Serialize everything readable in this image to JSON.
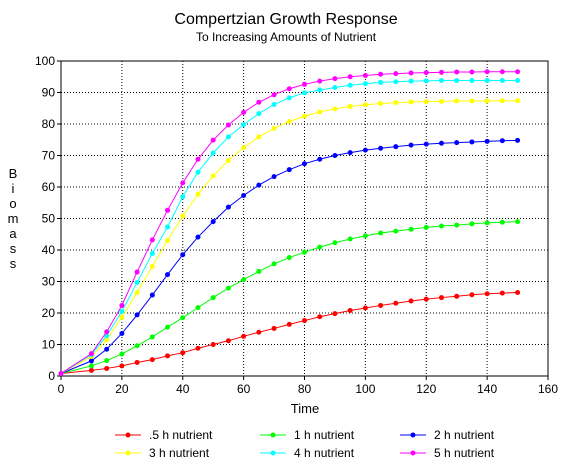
{
  "chart_data": {
    "type": "line",
    "title": "Compertzian Growth Response",
    "subtitle": "To Increasing Amounts of Nutrient",
    "xlabel": "Time",
    "ylabel": "Biomass",
    "xlim": [
      0,
      160
    ],
    "ylim": [
      0,
      100
    ],
    "xticks": [
      "0",
      "20",
      "40",
      "60",
      "80",
      "100",
      "120",
      "140",
      "160"
    ],
    "yticks": [
      "0",
      "10",
      "20",
      "30",
      "40",
      "50",
      "60",
      "70",
      "80",
      "90",
      "100"
    ],
    "grid": true,
    "legend_position": "bottom",
    "x": [
      0,
      10,
      15,
      20,
      25,
      30,
      35,
      40,
      45,
      50,
      55,
      60,
      65,
      70,
      75,
      80,
      85,
      90,
      95,
      100,
      105,
      110,
      115,
      120,
      125,
      130,
      135,
      140,
      145,
      150
    ],
    "series": [
      {
        "name": ".5 h nutrient",
        "color": "#ff0000",
        "values": [
          0.8,
          1.8,
          2.4,
          3.2,
          4.3,
          5.2,
          6.4,
          7.4,
          8.8,
          10.0,
          11.2,
          12.6,
          13.9,
          15.1,
          16.4,
          17.6,
          18.8,
          19.8,
          20.8,
          21.6,
          22.4,
          23.1,
          23.8,
          24.4,
          24.9,
          25.3,
          25.8,
          26.1,
          26.3,
          26.5
        ]
      },
      {
        "name": "1 h nutrient",
        "color": "#00ff00",
        "values": [
          0.8,
          3.2,
          4.9,
          7.0,
          9.6,
          12.4,
          15.5,
          18.5,
          21.7,
          24.9,
          27.9,
          30.6,
          33.2,
          35.6,
          37.6,
          39.3,
          40.9,
          42.3,
          43.5,
          44.5,
          45.4,
          46.0,
          46.6,
          47.2,
          47.6,
          47.9,
          48.3,
          48.6,
          48.8,
          49.0
        ]
      },
      {
        "name": "2 h nutrient",
        "color": "#0000ff",
        "values": [
          0.8,
          4.8,
          8.5,
          13.5,
          19.4,
          25.7,
          32.2,
          38.5,
          44.1,
          49.0,
          53.6,
          57.3,
          60.6,
          63.3,
          65.5,
          67.4,
          68.8,
          70.0,
          70.9,
          71.7,
          72.3,
          72.8,
          73.3,
          73.6,
          73.9,
          74.1,
          74.3,
          74.5,
          74.7,
          74.8
        ]
      },
      {
        "name": "3 h nutrient",
        "color": "#ffff00",
        "values": [
          0.8,
          6.2,
          11.5,
          18.6,
          26.5,
          34.8,
          43.0,
          50.8,
          57.7,
          63.5,
          68.4,
          72.5,
          75.9,
          78.6,
          80.8,
          82.5,
          83.8,
          84.8,
          85.6,
          86.1,
          86.5,
          86.8,
          87.0,
          87.1,
          87.2,
          87.3,
          87.3,
          87.3,
          87.4,
          87.4
        ]
      },
      {
        "name": "4 h nutrient",
        "color": "#00ffff",
        "values": [
          0.8,
          6.8,
          12.8,
          20.5,
          29.7,
          38.9,
          47.3,
          56.9,
          64.7,
          70.8,
          75.9,
          79.8,
          83.3,
          86.2,
          88.3,
          89.9,
          90.8,
          91.6,
          92.3,
          92.8,
          93.2,
          93.4,
          93.6,
          93.7,
          93.8,
          93.8,
          93.8,
          93.8,
          93.8,
          93.8
        ]
      },
      {
        "name": "5 h nutrient",
        "color": "#ff00ff",
        "values": [
          0.8,
          7.1,
          14.0,
          22.4,
          33.0,
          43.2,
          52.6,
          61.3,
          68.8,
          74.9,
          79.7,
          83.7,
          86.9,
          89.3,
          91.2,
          92.6,
          93.6,
          94.4,
          95.0,
          95.4,
          95.8,
          96.0,
          96.2,
          96.3,
          96.4,
          96.5,
          96.5,
          96.6,
          96.6,
          96.6
        ]
      }
    ]
  }
}
